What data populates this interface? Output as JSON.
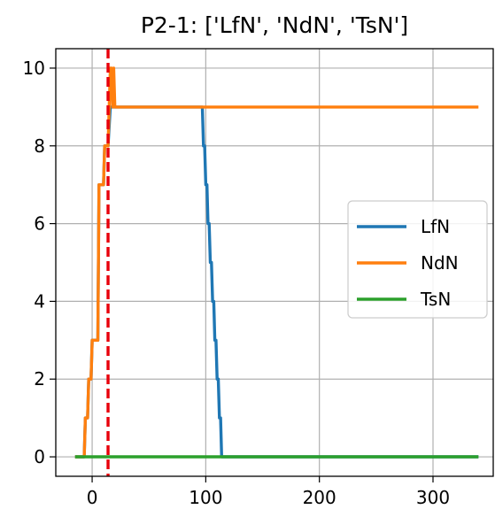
{
  "chart_data": {
    "type": "line",
    "title": "P2-1: ['LfN', 'NdN', 'TsN']",
    "xlabel": "",
    "ylabel": "",
    "xlim": [
      -32,
      353
    ],
    "ylim": [
      -0.5,
      10.5
    ],
    "xticks": [
      0,
      100,
      200,
      300
    ],
    "yticks": [
      0,
      2,
      4,
      6,
      8,
      10
    ],
    "grid": true,
    "legend_position": "center-right",
    "vline": {
      "x": 14,
      "color": "#e8000b",
      "style": "dashed"
    },
    "series": [
      {
        "name": "LfN",
        "color": "#1f77b4",
        "x": [
          -15,
          -7,
          -6,
          -4,
          -3,
          -1,
          0,
          5,
          6,
          10,
          11,
          14,
          16,
          97,
          98,
          99,
          100,
          101,
          102,
          103,
          104,
          105,
          106,
          107,
          108,
          109,
          110,
          111,
          112,
          113,
          114,
          115,
          116,
          117,
          340
        ],
        "y": [
          0,
          0,
          1,
          1,
          2,
          2,
          3,
          3,
          7,
          7,
          8,
          8,
          9,
          9,
          8,
          8,
          7,
          7,
          6,
          6,
          5,
          5,
          4,
          4,
          3,
          3,
          2,
          2,
          1,
          1,
          0,
          0,
          0,
          0,
          0
        ]
      },
      {
        "name": "NdN",
        "color": "#ff7f0e",
        "x": [
          -15,
          -7,
          -6,
          -4,
          -3,
          -1,
          0,
          5,
          6,
          10,
          11,
          14,
          15,
          16,
          17,
          18,
          19,
          20,
          340
        ],
        "y": [
          0,
          0,
          1,
          1,
          2,
          2,
          3,
          3,
          7,
          7,
          8,
          8,
          9,
          10,
          10,
          9,
          10,
          9,
          9
        ]
      },
      {
        "name": "TsN",
        "color": "#2ca02c",
        "x": [
          -15,
          340
        ],
        "y": [
          0,
          0
        ]
      }
    ]
  }
}
